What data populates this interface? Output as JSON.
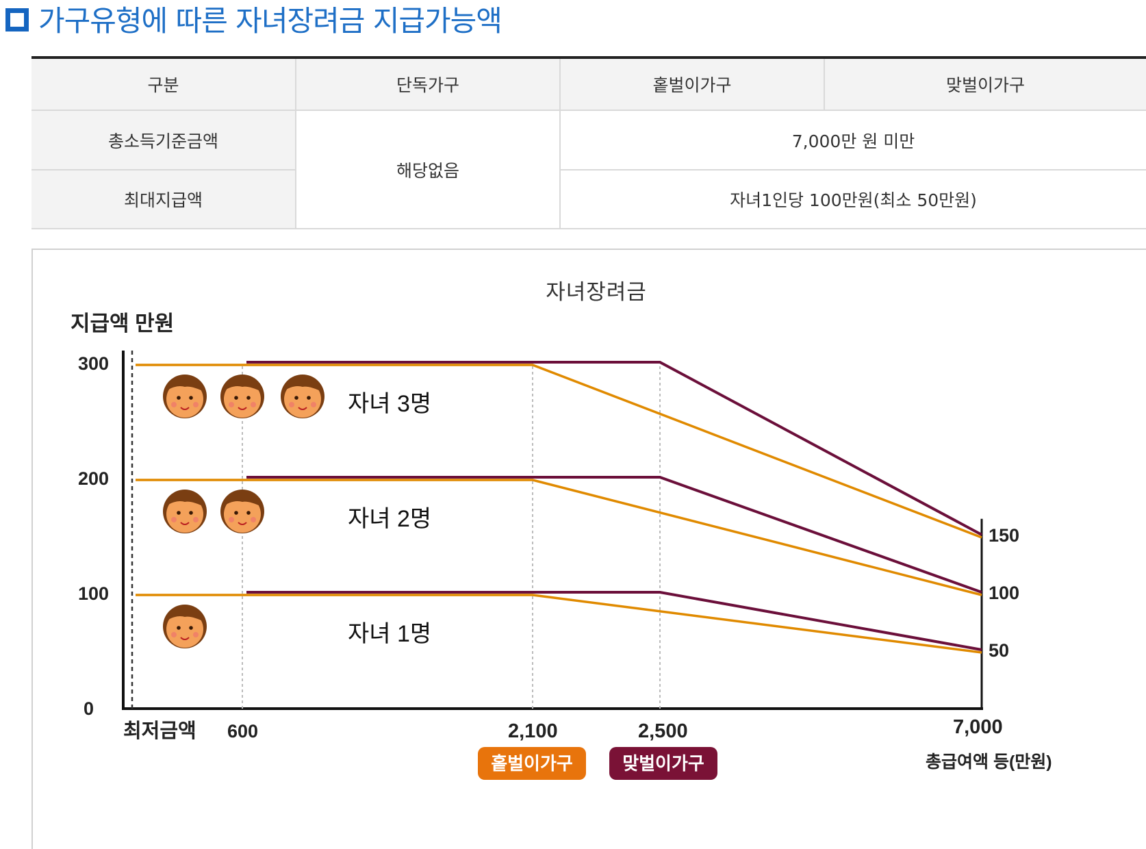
{
  "section": {
    "title": "가구유형에 따른 자녀장려금 지급가능액"
  },
  "table": {
    "headers": [
      "구분",
      "단독가구",
      "홑벌이가구",
      "맞벌이가구"
    ],
    "rows": [
      {
        "label": "총소득기준금액",
        "single": "해당없음",
        "value": "7,000만 원 미만"
      },
      {
        "label": "최대지급액",
        "value": "자녀1인당 100만원(최소 50만원)"
      }
    ]
  },
  "chart_data": {
    "type": "line",
    "title": "자녀장려금",
    "ylabel": "지급액 만원",
    "xlabel": "총급여액 등(만원)",
    "y_ticks": [
      "300",
      "200",
      "100",
      "0"
    ],
    "x_ticks": [
      "최저금액",
      "600",
      "2,100",
      "2,500",
      "7,000"
    ],
    "right_ticks": [
      "150",
      "100",
      "50"
    ],
    "ylim": [
      0,
      300
    ],
    "groups": [
      {
        "label": "자녀 3명",
        "children": 3,
        "holbeol": {
          "x": [
            "최저금액",
            "2,100",
            "7,000"
          ],
          "y": [
            300,
            300,
            150
          ]
        },
        "matbeol": {
          "x": [
            "600",
            "2,500",
            "7,000"
          ],
          "y": [
            300,
            300,
            150
          ]
        }
      },
      {
        "label": "자녀 2명",
        "children": 2,
        "holbeol": {
          "x": [
            "최저금액",
            "2,100",
            "7,000"
          ],
          "y": [
            200,
            200,
            100
          ]
        },
        "matbeol": {
          "x": [
            "600",
            "2,500",
            "7,000"
          ],
          "y": [
            200,
            200,
            100
          ]
        }
      },
      {
        "label": "자녀 1명",
        "children": 1,
        "holbeol": {
          "x": [
            "최저금액",
            "2,100",
            "7,000"
          ],
          "y": [
            100,
            100,
            50
          ]
        },
        "matbeol": {
          "x": [
            "600",
            "2,500",
            "7,000"
          ],
          "y": [
            100,
            100,
            50
          ]
        }
      }
    ],
    "legend": [
      {
        "label": "홑벌이가구",
        "color": "#e8740c"
      },
      {
        "label": "맞벌이가구",
        "color": "#7a1236"
      }
    ],
    "colors": {
      "holbeol_line": "#e08a00",
      "matbeol_line": "#6b0f3a",
      "face": "#f4a15a",
      "hair": "#7a3e12"
    },
    "face_icon": "child-face-icon"
  }
}
